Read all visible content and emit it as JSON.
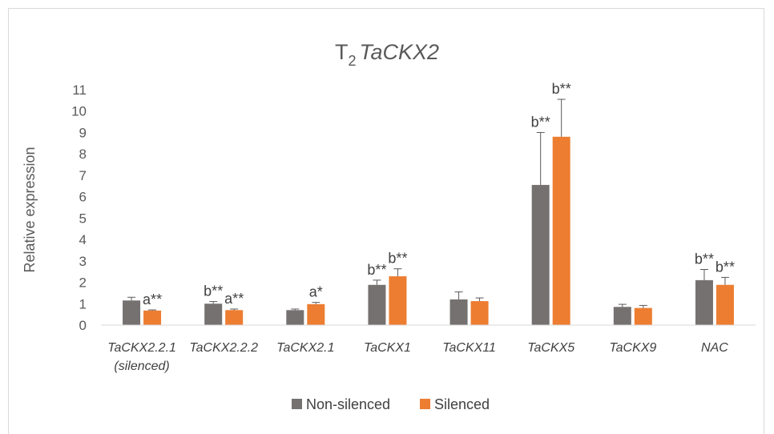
{
  "chart_data": {
    "type": "bar",
    "title": {
      "main": "T",
      "sub": "2",
      "gene": "TaCKX2"
    },
    "ylabel": "Relative expression",
    "xlabel": "",
    "ylim": [
      0,
      11
    ],
    "yticks": [
      0,
      1,
      2,
      3,
      4,
      5,
      6,
      7,
      8,
      9,
      10,
      11
    ],
    "grid": false,
    "legend_position": "bottom",
    "categories": [
      {
        "label": "TaCKX2.2.1",
        "label2": "(silenced)"
      },
      {
        "label": "TaCKX2.2.2",
        "label2": ""
      },
      {
        "label": "TaCKX2.1",
        "label2": ""
      },
      {
        "label": "TaCKX1",
        "label2": ""
      },
      {
        "label": "TaCKX11",
        "label2": ""
      },
      {
        "label": "TaCKX5",
        "label2": ""
      },
      {
        "label": "TaCKX9",
        "label2": ""
      },
      {
        "label": "NAC",
        "label2": ""
      }
    ],
    "series": [
      {
        "name": "Non-silenced",
        "color": "#767171",
        "values": [
          1.15,
          1.0,
          0.7,
          1.88,
          1.2,
          6.55,
          0.85,
          2.1
        ],
        "errors": [
          0.15,
          0.1,
          0.05,
          0.22,
          0.35,
          2.45,
          0.12,
          0.5
        ],
        "annotations": [
          "",
          "b**",
          "",
          "b**",
          "",
          "b**",
          "",
          "b**"
        ]
      },
      {
        "name": "Silenced",
        "color": "#ed7d31",
        "values": [
          0.68,
          0.7,
          0.98,
          2.28,
          1.12,
          8.8,
          0.8,
          1.88
        ],
        "errors": [
          0.03,
          0.05,
          0.08,
          0.35,
          0.15,
          1.75,
          0.12,
          0.35
        ],
        "annotations": [
          "a**",
          "a**",
          "a*",
          "b**",
          "",
          "b**",
          "",
          "b**"
        ]
      }
    ]
  }
}
